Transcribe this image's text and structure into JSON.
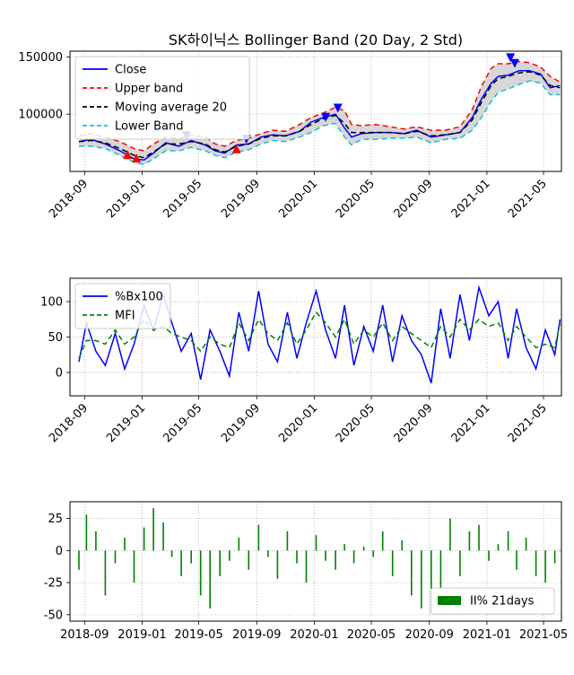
{
  "figure": {
    "title": "SK하이닉스 Bollinger Band (20 Day, 2 Std)"
  },
  "chart_data": [
    {
      "type": "line",
      "panel": "price",
      "title": "SK하이닉스 Bollinger Band (20 Day, 2 Std)",
      "xlabel": "",
      "ylabel": "",
      "grid": true,
      "legend_placement": "top-left",
      "x_range": [
        "2018-08-01",
        "2021-06-08"
      ],
      "ylim": [
        50000,
        155000
      ],
      "y_ticks": [
        100000,
        150000
      ],
      "x_tick_labels": [
        "2018-09",
        "2019-01",
        "2019-05",
        "2019-09",
        "2020-01",
        "2020-05",
        "2020-09",
        "2021-01",
        "2021-05"
      ],
      "x": [
        "2018-08-20",
        "2018-09-15",
        "2018-10-15",
        "2018-11-15",
        "2018-12-15",
        "2019-01-05",
        "2019-01-25",
        "2019-02-20",
        "2019-03-20",
        "2019-04-15",
        "2019-05-15",
        "2019-06-05",
        "2019-06-25",
        "2019-07-20",
        "2019-08-15",
        "2019-09-10",
        "2019-10-05",
        "2019-11-01",
        "2019-12-01",
        "2019-12-25",
        "2020-01-20",
        "2020-02-15",
        "2020-03-05",
        "2020-03-20",
        "2020-04-10",
        "2020-05-10",
        "2020-06-10",
        "2020-07-10",
        "2020-08-05",
        "2020-09-05",
        "2020-10-05",
        "2020-11-05",
        "2020-12-01",
        "2020-12-20",
        "2021-01-10",
        "2021-01-25",
        "2021-02-15",
        "2021-03-10",
        "2021-04-01",
        "2021-04-25",
        "2021-05-15",
        "2021-06-05"
      ],
      "series": [
        {
          "name": "Close",
          "color": "#0000ff",
          "style": "solid",
          "values": [
            76000,
            78000,
            74000,
            68000,
            61000,
            60000,
            66000,
            75000,
            72000,
            77000,
            73000,
            68000,
            66000,
            73000,
            74000,
            80000,
            82000,
            81000,
            85000,
            93000,
            97000,
            100000,
            88000,
            80000,
            83000,
            84000,
            84000,
            83000,
            86000,
            80000,
            82000,
            84000,
            97000,
            113000,
            127000,
            133000,
            134000,
            138000,
            138000,
            135000,
            123000,
            125000
          ]
        },
        {
          "name": "Upper band",
          "color": "#ff0000",
          "style": "dashed",
          "values": [
            81000,
            83000,
            80000,
            76000,
            70000,
            68000,
            74000,
            80000,
            79000,
            82000,
            80000,
            74000,
            72000,
            77000,
            79000,
            83000,
            86000,
            85000,
            91000,
            97000,
            101000,
            106000,
            103000,
            91000,
            90000,
            91000,
            89000,
            87000,
            89000,
            86000,
            86000,
            89000,
            104000,
            124000,
            140000,
            144000,
            144000,
            146000,
            145000,
            141000,
            133000,
            128000
          ]
        },
        {
          "name": "Moving average 20",
          "color": "#000000",
          "style": "dashed",
          "values": [
            76000,
            77000,
            75000,
            70000,
            64000,
            62000,
            67000,
            74000,
            74000,
            76000,
            74000,
            69000,
            67000,
            72000,
            74000,
            79000,
            81000,
            81000,
            85000,
            91000,
            96000,
            99000,
            92000,
            84000,
            84000,
            84000,
            84000,
            83000,
            85000,
            81000,
            82000,
            84000,
            95000,
            110000,
            125000,
            131000,
            133000,
            136000,
            137000,
            134000,
            125000,
            123000
          ]
        },
        {
          "name": "Lower Band",
          "color": "#17becf",
          "style": "dashed",
          "values": [
            72000,
            72000,
            70000,
            64000,
            58000,
            56000,
            61000,
            68000,
            68000,
            71000,
            68000,
            64000,
            62000,
            67000,
            69000,
            74000,
            77000,
            76000,
            80000,
            84000,
            90000,
            92000,
            80000,
            73000,
            78000,
            78000,
            79000,
            79000,
            80000,
            75000,
            78000,
            79000,
            86000,
            97000,
            111000,
            119000,
            122000,
            126000,
            129000,
            127000,
            117000,
            117000
          ]
        }
      ],
      "markers": {
        "buy": {
          "color": "#ff0000",
          "shape": "triangle-up",
          "x": [
            "2018-12-01",
            "2018-12-20",
            "2019-07-20"
          ],
          "y": [
            64000,
            61000,
            69000
          ]
        },
        "sell": {
          "color": "#0000ff",
          "shape": "triangle-down",
          "x": [
            "2019-04-05",
            "2019-08-10",
            "2020-01-25",
            "2020-02-20",
            "2021-02-20",
            "2021-03-01"
          ],
          "y": [
            82000,
            79000,
            98000,
            106000,
            150000,
            145000
          ]
        }
      }
    },
    {
      "type": "line",
      "panel": "indicator",
      "title": "",
      "xlabel": "",
      "ylabel": "",
      "grid": true,
      "legend_placement": "top-left",
      "x_range": [
        "2018-08-01",
        "2021-06-08"
      ],
      "ylim": [
        -33,
        133
      ],
      "y_ticks": [
        0,
        50,
        100
      ],
      "x_tick_labels": [
        "2018-09",
        "2019-01",
        "2019-05",
        "2019-09",
        "2020-01",
        "2020-05",
        "2020-09",
        "2021-01",
        "2021-05"
      ],
      "x": [
        "2018-08-20",
        "2018-09-05",
        "2018-09-25",
        "2018-10-15",
        "2018-11-05",
        "2018-11-25",
        "2018-12-15",
        "2019-01-05",
        "2019-01-25",
        "2019-02-15",
        "2019-03-05",
        "2019-03-25",
        "2019-04-15",
        "2019-05-05",
        "2019-05-25",
        "2019-06-15",
        "2019-07-05",
        "2019-07-25",
        "2019-08-15",
        "2019-09-05",
        "2019-09-25",
        "2019-10-15",
        "2019-11-05",
        "2019-11-25",
        "2019-12-15",
        "2020-01-05",
        "2020-01-25",
        "2020-02-15",
        "2020-03-05",
        "2020-03-25",
        "2020-04-15",
        "2020-05-05",
        "2020-05-25",
        "2020-06-15",
        "2020-07-05",
        "2020-07-25",
        "2020-08-15",
        "2020-09-05",
        "2020-09-25",
        "2020-10-15",
        "2020-11-05",
        "2020-11-25",
        "2020-12-15",
        "2021-01-05",
        "2021-01-25",
        "2021-02-15",
        "2021-03-05",
        "2021-03-25",
        "2021-04-15",
        "2021-05-05",
        "2021-05-25",
        "2021-06-05"
      ],
      "series": [
        {
          "name": "%Bx100",
          "color": "#0000ff",
          "style": "solid",
          "values": [
            15,
            70,
            30,
            10,
            55,
            5,
            40,
            95,
            60,
            110,
            70,
            30,
            55,
            -10,
            60,
            30,
            -5,
            85,
            30,
            115,
            40,
            15,
            85,
            20,
            70,
            115,
            60,
            20,
            95,
            10,
            65,
            30,
            95,
            15,
            80,
            45,
            25,
            -15,
            90,
            20,
            110,
            45,
            120,
            80,
            100,
            20,
            90,
            35,
            5,
            60,
            25,
            75
          ]
        },
        {
          "name": "MFI",
          "color": "#008000",
          "style": "dashed",
          "values": [
            20,
            45,
            45,
            40,
            60,
            40,
            50,
            75,
            60,
            65,
            55,
            50,
            45,
            30,
            50,
            40,
            35,
            70,
            45,
            75,
            55,
            45,
            70,
            40,
            60,
            85,
            70,
            50,
            75,
            40,
            60,
            50,
            70,
            45,
            65,
            55,
            45,
            35,
            65,
            50,
            75,
            60,
            75,
            65,
            70,
            45,
            65,
            50,
            35,
            40,
            35,
            70
          ]
        }
      ]
    },
    {
      "type": "bar",
      "panel": "ii",
      "title": "",
      "xlabel": "",
      "ylabel": "",
      "grid": true,
      "legend_placement": "lower-right",
      "x_range": [
        "2018-08-01",
        "2021-06-08"
      ],
      "ylim": [
        -55,
        38
      ],
      "y_ticks": [
        -50,
        -25,
        0,
        25
      ],
      "x_tick_labels": [
        "2018-09",
        "2019-01",
        "2019-05",
        "2019-09",
        "2020-01",
        "2020-05",
        "2020-09",
        "2021-01",
        "2021-05"
      ],
      "x": [
        "2018-08-20",
        "2018-09-05",
        "2018-09-25",
        "2018-10-15",
        "2018-11-05",
        "2018-11-25",
        "2018-12-15",
        "2019-01-05",
        "2019-01-25",
        "2019-02-15",
        "2019-03-05",
        "2019-03-25",
        "2019-04-15",
        "2019-05-05",
        "2019-05-25",
        "2019-06-15",
        "2019-07-05",
        "2019-07-25",
        "2019-08-15",
        "2019-09-05",
        "2019-09-25",
        "2019-10-15",
        "2019-11-05",
        "2019-11-25",
        "2019-12-15",
        "2020-01-05",
        "2020-01-25",
        "2020-02-15",
        "2020-03-05",
        "2020-03-25",
        "2020-04-15",
        "2020-05-05",
        "2020-05-25",
        "2020-06-15",
        "2020-07-05",
        "2020-07-25",
        "2020-08-15",
        "2020-09-05",
        "2020-09-25",
        "2020-10-15",
        "2020-11-05",
        "2020-11-25",
        "2020-12-15",
        "2021-01-05",
        "2021-01-25",
        "2021-02-15",
        "2021-03-05",
        "2021-03-25",
        "2021-04-15",
        "2021-05-05",
        "2021-05-25",
        "2021-06-05"
      ],
      "series": [
        {
          "name": "II% 21days",
          "color": "#008000",
          "values": [
            -15,
            28,
            15,
            -35,
            -10,
            10,
            -25,
            18,
            33,
            22,
            -5,
            -20,
            -10,
            -35,
            -45,
            -20,
            -8,
            10,
            -15,
            20,
            -5,
            -22,
            15,
            -10,
            -25,
            12,
            -8,
            -15,
            5,
            -10,
            3,
            -5,
            15,
            -20,
            8,
            -35,
            -45,
            -48,
            -30,
            25,
            -20,
            15,
            20,
            -8,
            5,
            15,
            -15,
            10,
            -20,
            -25,
            -10,
            0
          ]
        }
      ]
    }
  ]
}
